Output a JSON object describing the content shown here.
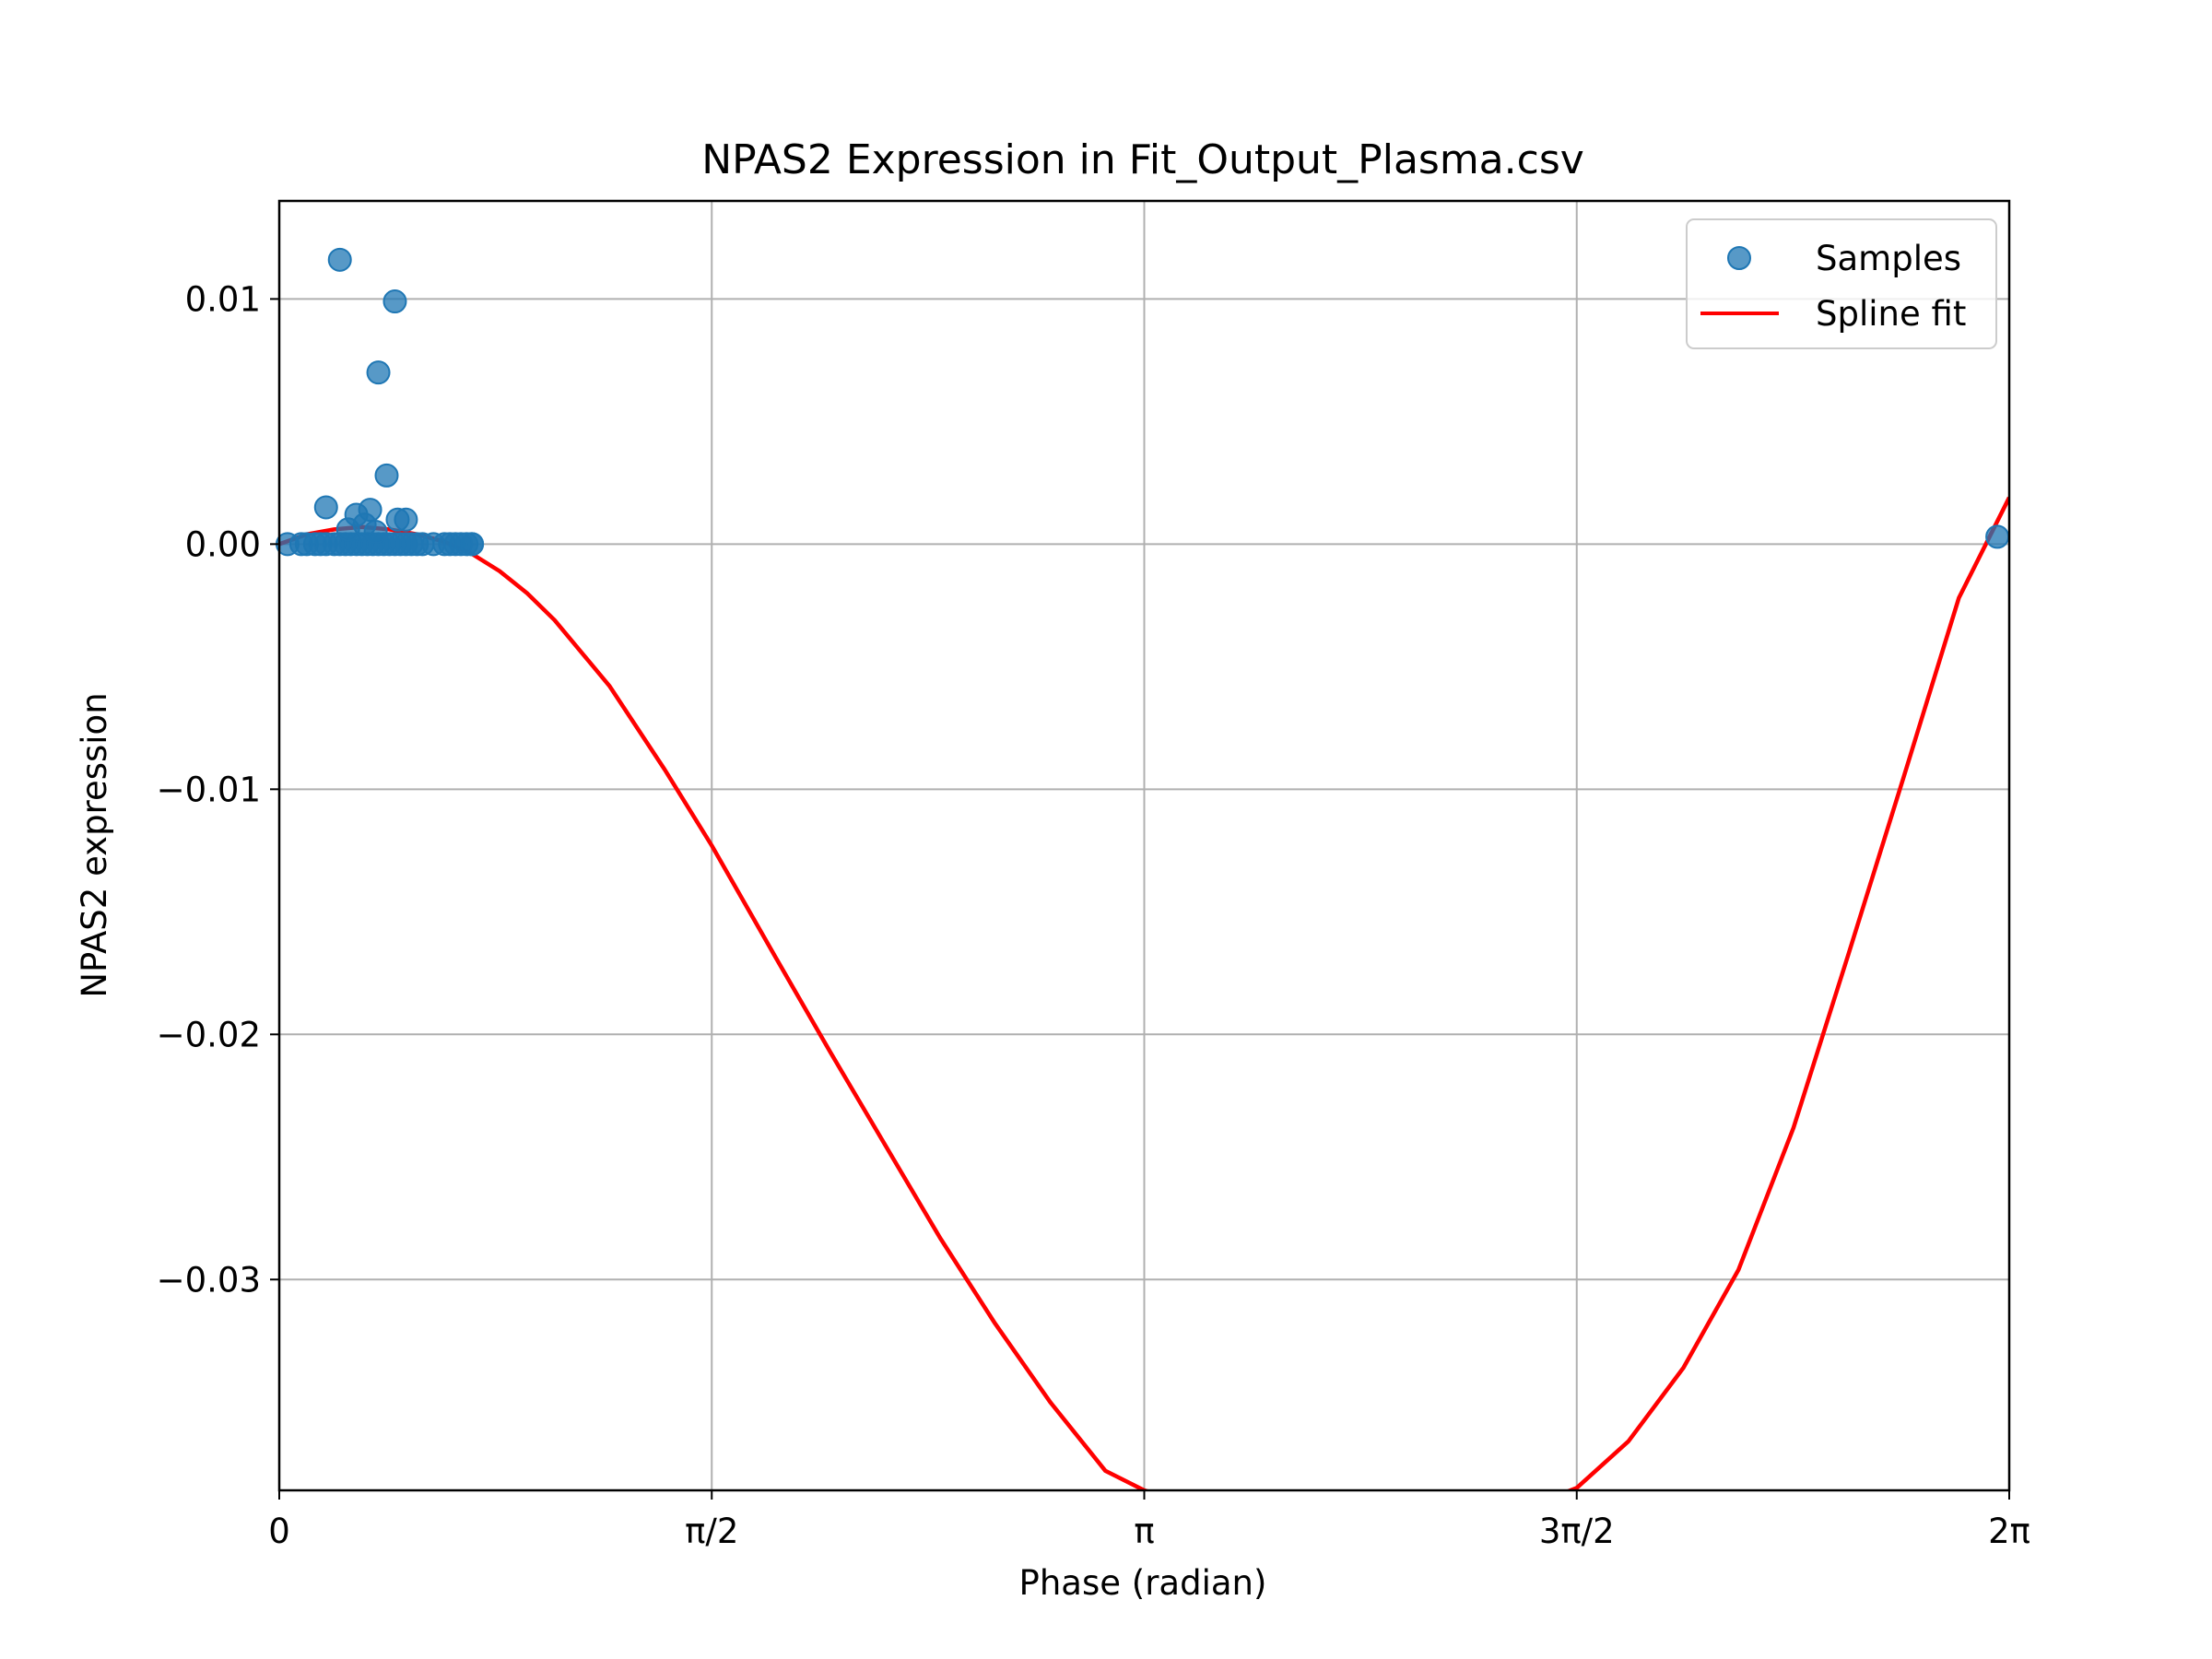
{
  "chart_data": {
    "type": "scatter",
    "title": "NPAS2 Expression in Fit_Output_Plasma.csv",
    "xlabel": "Phase (radian)",
    "ylabel": "NPAS2 expression",
    "xlim": [
      0,
      6.2832
    ],
    "ylim": [
      -0.0386,
      0.014
    ],
    "grid": true,
    "legend_position": "upper-right",
    "x_ticks": [
      {
        "value": 0,
        "label": "0"
      },
      {
        "value": 1.5708,
        "label": "π/2"
      },
      {
        "value": 3.1416,
        "label": "π"
      },
      {
        "value": 4.7124,
        "label": "3π/2"
      },
      {
        "value": 6.2832,
        "label": "2π"
      }
    ],
    "y_ticks": [
      {
        "value": 0.01,
        "label": "0.01"
      },
      {
        "value": 0.0,
        "label": "0.00"
      },
      {
        "value": -0.01,
        "label": "−0.01"
      },
      {
        "value": -0.02,
        "label": "−0.02"
      },
      {
        "value": -0.03,
        "label": "−0.03"
      }
    ],
    "series": [
      {
        "name": "Samples",
        "kind": "scatter",
        "color": "#1f77b4",
        "points": [
          {
            "x": 0.03,
            "y": 0.0
          },
          {
            "x": 0.08,
            "y": 0.0
          },
          {
            "x": 0.1,
            "y": 0.0
          },
          {
            "x": 0.13,
            "y": 0.0
          },
          {
            "x": 0.15,
            "y": 0.0
          },
          {
            "x": 0.17,
            "y": 0.0
          },
          {
            "x": 0.2,
            "y": 0.0
          },
          {
            "x": 0.22,
            "y": 0.0
          },
          {
            "x": 0.24,
            "y": 0.0
          },
          {
            "x": 0.26,
            "y": 0.0
          },
          {
            "x": 0.28,
            "y": 0.0
          },
          {
            "x": 0.3,
            "y": 0.0
          },
          {
            "x": 0.32,
            "y": 0.0
          },
          {
            "x": 0.34,
            "y": 0.0
          },
          {
            "x": 0.36,
            "y": 0.0
          },
          {
            "x": 0.38,
            "y": 0.0
          },
          {
            "x": 0.4,
            "y": 0.0
          },
          {
            "x": 0.42,
            "y": 0.0
          },
          {
            "x": 0.44,
            "y": 0.0
          },
          {
            "x": 0.46,
            "y": 0.0
          },
          {
            "x": 0.48,
            "y": 0.0
          },
          {
            "x": 0.5,
            "y": 0.0
          },
          {
            "x": 0.52,
            "y": 0.0
          },
          {
            "x": 0.6,
            "y": 0.0
          },
          {
            "x": 0.62,
            "y": 0.0
          },
          {
            "x": 0.68,
            "y": 0.0
          },
          {
            "x": 0.7,
            "y": 0.0
          },
          {
            "x": 0.7,
            "y": 0.0
          },
          {
            "x": 0.66,
            "y": 0.0
          },
          {
            "x": 0.64,
            "y": 0.0
          },
          {
            "x": 0.56,
            "y": 0.0
          },
          {
            "x": 0.17,
            "y": 0.0015
          },
          {
            "x": 0.22,
            "y": 0.0116
          },
          {
            "x": 0.28,
            "y": 0.0012
          },
          {
            "x": 0.33,
            "y": 0.0014
          },
          {
            "x": 0.35,
            "y": 0.0005
          },
          {
            "x": 0.36,
            "y": 0.007
          },
          {
            "x": 0.39,
            "y": 0.0028
          },
          {
            "x": 0.42,
            "y": 0.0099
          },
          {
            "x": 0.43,
            "y": 0.001
          },
          {
            "x": 0.46,
            "y": 0.001
          },
          {
            "x": 0.25,
            "y": 0.0006
          },
          {
            "x": 0.31,
            "y": 0.0008
          },
          {
            "x": 6.24,
            "y": 0.0003
          }
        ]
      },
      {
        "name": "Spline fit",
        "kind": "line",
        "color": "#ff0000",
        "points": [
          {
            "x": 0.0,
            "y": 0.0
          },
          {
            "x": 0.1,
            "y": 0.0004
          },
          {
            "x": 0.2,
            "y": 0.0006
          },
          {
            "x": 0.3,
            "y": 0.0007
          },
          {
            "x": 0.4,
            "y": 0.0006
          },
          {
            "x": 0.5,
            "y": 0.0004
          },
          {
            "x": 0.6,
            "y": 0.0001
          },
          {
            "x": 0.7,
            "y": -0.0004
          },
          {
            "x": 0.8,
            "y": -0.0011
          },
          {
            "x": 0.9,
            "y": -0.002
          },
          {
            "x": 1.0,
            "y": -0.0031
          },
          {
            "x": 1.2,
            "y": -0.0058
          },
          {
            "x": 1.4,
            "y": -0.0092
          },
          {
            "x": 1.5708,
            "y": -0.0123
          },
          {
            "x": 1.8,
            "y": -0.0168
          },
          {
            "x": 2.0,
            "y": -0.0207
          },
          {
            "x": 2.2,
            "y": -0.0245
          },
          {
            "x": 2.4,
            "y": -0.0283
          },
          {
            "x": 2.6,
            "y": -0.0318
          },
          {
            "x": 2.8,
            "y": -0.035
          },
          {
            "x": 3.0,
            "y": -0.0378
          },
          {
            "x": 3.1416,
            "y": -0.0386
          },
          {
            "x": 3.2,
            "y": -0.0388
          },
          {
            "x": 3.4,
            "y": -0.0396
          },
          {
            "x": 3.6,
            "y": -0.0402
          },
          {
            "x": 3.8,
            "y": -0.0405
          },
          {
            "x": 4.0,
            "y": -0.0404
          },
          {
            "x": 4.26,
            "y": -0.0402
          },
          {
            "x": 4.4,
            "y": -0.0398
          },
          {
            "x": 4.6,
            "y": -0.039
          },
          {
            "x": 4.7124,
            "y": -0.0385
          },
          {
            "x": 4.9,
            "y": -0.0366
          },
          {
            "x": 5.1,
            "y": -0.0336
          },
          {
            "x": 5.3,
            "y": -0.0296
          },
          {
            "x": 5.5,
            "y": -0.0238
          },
          {
            "x": 5.7,
            "y": -0.0167
          },
          {
            "x": 5.9,
            "y": -0.0095
          },
          {
            "x": 6.1,
            "y": -0.0022
          },
          {
            "x": 6.2832,
            "y": 0.0019
          }
        ]
      }
    ]
  }
}
